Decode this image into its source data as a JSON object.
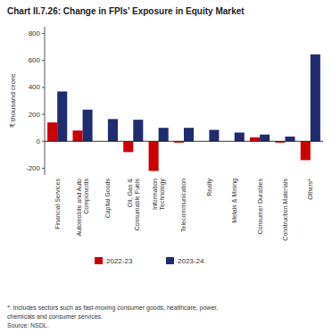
{
  "chart_data": {
    "type": "bar",
    "title": "Chart II.7.26: Change in FPIs’ Exposure in Equity Market",
    "categories": [
      "Financial Services",
      "Automobile and Auto\nComponents",
      "Capital Goods",
      "Oil, Gas &\nConsumable Fuels",
      "Information\nTechnology",
      "Telecommunication",
      "Realty",
      "Metals & Mining",
      "Consumer Durables",
      "Construction Materials",
      "Others*"
    ],
    "series": [
      {
        "name": "2022-23",
        "color": "#cc0000",
        "values": [
          140,
          80,
          0,
          -80,
          -220,
          -10,
          0,
          0,
          30,
          -10,
          -140
        ]
      },
      {
        "name": "2023-24",
        "color": "#1f2d6e",
        "values": [
          370,
          235,
          165,
          160,
          100,
          100,
          85,
          65,
          50,
          35,
          645
        ]
      }
    ],
    "ylabel": "₹ thousand crore",
    "ylim": [
      -250,
      850
    ],
    "yticks": [
      -200,
      0,
      200,
      400,
      600,
      800
    ],
    "grid": false,
    "legend": "bottom",
    "annotations": [
      "*: Includes sectors such as fast-moving consumer goods, healthcare, power,\nchemicals and consumer services.\nSource: NSDL."
    ]
  }
}
